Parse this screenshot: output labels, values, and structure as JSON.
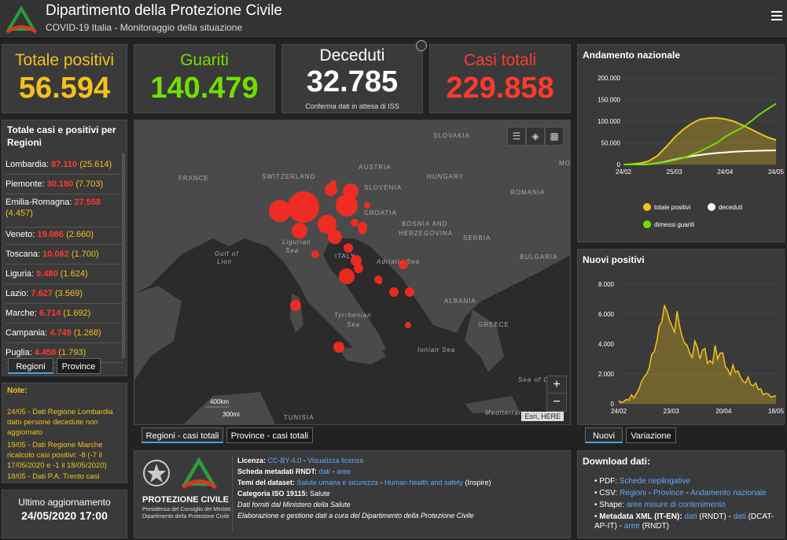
{
  "header": {
    "title": "Dipartimento della Protezione Civile",
    "subtitle": "COVID-19 Italia - Monitoraggio della situazione"
  },
  "stats": {
    "positivi": {
      "label": "Totale positivi",
      "value": "56.594",
      "color": "#f3c21b"
    },
    "guariti": {
      "label": "Guariti",
      "value": "140.479",
      "color": "#70e000"
    },
    "deceduti": {
      "label": "Deceduti",
      "value": "32.785",
      "note": "Conferma dati in attesa di ISS",
      "color": "#ffffff"
    },
    "totali": {
      "label": "Casi totali",
      "value": "229.858",
      "color": "#ff3b2f"
    }
  },
  "regions_panel": {
    "title": "Totale casi e positivi per Regioni",
    "items": [
      {
        "name": "Lombardia",
        "cases": "87.110",
        "positives": "(25.614)"
      },
      {
        "name": "Piemonte",
        "cases": "30.180",
        "positives": "(7.703)"
      },
      {
        "name": "Emilia-Romagna",
        "cases": "27.558",
        "positives": "(4.457)"
      },
      {
        "name": "Veneto",
        "cases": "19.086",
        "positives": "(2.660)"
      },
      {
        "name": "Toscana",
        "cases": "10.062",
        "positives": "(1.700)"
      },
      {
        "name": "Liguria",
        "cases": "9.480",
        "positives": "(1.624)"
      },
      {
        "name": "Lazio",
        "cases": "7.627",
        "positives": "(3.569)"
      },
      {
        "name": "Marche",
        "cases": "6.714",
        "positives": "(1.692)"
      },
      {
        "name": "Campania",
        "cases": "4.749",
        "positives": "(1.268)"
      },
      {
        "name": "Puglia",
        "cases": "4.458",
        "positives": "(1.793)"
      }
    ],
    "tabs": [
      "Regioni",
      "Province"
    ]
  },
  "notes": {
    "title": "Note:",
    "lines": [
      "24/05 - Dati Regione Lombardia dato persone decedute non aggiornato",
      "19/05 - Dati Regione Marche ricalcolo casi positivi: -8 (-7 il 17/05/2020 e -1 il 18/05/2020)",
      "18/05 - Dati P.A. Trento casi"
    ]
  },
  "update": {
    "label": "Ultimo aggiornamento",
    "value": "24/05/2020 17:00"
  },
  "map": {
    "labels": [
      "FRANCE",
      "SWITZERLAND",
      "AUSTRIA",
      "SLOVAKIA",
      "HUNGARY",
      "SLOVENIA",
      "CROATIA",
      "ROMANIA",
      "BOSNIA AND",
      "HERZEGOVINA",
      "SERBIA",
      "ITALY",
      "BULGARIA",
      "ALBANIA",
      "GREECE",
      "TUNISIA",
      "Gulf of",
      "Lion",
      "Ligurian",
      "Sea",
      "Adriatic Sea",
      "Tyrrhenian",
      "Sea",
      "Ionian Sea",
      "Sea of Crete",
      "Mediterranea",
      "MO"
    ],
    "scale_km": "400km",
    "scale_mi": "300mi",
    "attribution": "Esri, HERE",
    "zoom_in": "+",
    "zoom_out": "−",
    "tabs": [
      "Regioni - casi totali",
      "Province - casi totali"
    ]
  },
  "logo_panel": {
    "name": "PROTEZIONE CIVILE",
    "line1": "Presidenza del Consiglio dei Ministri",
    "line2": "Dipartimento della Protezione Civile"
  },
  "metadata": {
    "licenza_label": "Licenza:",
    "licenza_value": "CC-BY-4.0",
    "licenza_link": "Visualizza licenza",
    "rndt_label": "Scheda metadati RNDT:",
    "rndt_links": [
      "dati",
      "aree"
    ],
    "temi_label": "Temi del dataset:",
    "temi_links": [
      "Salute umana e sicurezza",
      "Human health and safety"
    ],
    "temi_suffix": "(Inspire)",
    "iso_label": "Categoria ISO 19115:",
    "iso_value": "Salute",
    "fonte": "Dati forniti dal Ministero della Salute",
    "gestione": "Elaborazione e gestione dati a cura del Dipartimento della Protezione Civile"
  },
  "andamento": {
    "title": "Andamento nazionale",
    "legend": [
      "totale positivi",
      "deceduti",
      "dimessi guariti"
    ]
  },
  "nuovi": {
    "title": "Nuovi positivi",
    "tabs": [
      "Nuovi",
      "Variazione"
    ]
  },
  "download": {
    "title": "Download dati:",
    "pdf_label": "PDF:",
    "pdf_link": "Schede riepilogative",
    "csv_label": "CSV:",
    "csv_links": [
      "Regioni",
      "Province",
      "Andamento nazionale"
    ],
    "shape_label": "Shape:",
    "shape_link": "aree misure di contenimento",
    "xml_label": "Metadata XML (IT-EN):",
    "xml_links": [
      "dati",
      "dati"
    ],
    "xml_rndt": "(RNDT)",
    "xml_dcat": "(DCAT-AP-IT)",
    "xml_aree": "aree",
    "xml_rndt2": "(RNDT)"
  },
  "chart_data": [
    {
      "type": "area",
      "title": "Andamento nazionale",
      "x_ticks": [
        "24/02",
        "25/03",
        "24/04",
        "24/05"
      ],
      "y_ticks": [
        "0",
        "50.000",
        "100.000",
        "150.000",
        "200.000"
      ],
      "ylim": [
        0,
        200000
      ],
      "x": [
        0,
        5,
        10,
        15,
        20,
        25,
        30,
        35,
        40,
        45,
        50,
        55,
        60,
        65,
        70,
        75,
        80,
        85,
        90
      ],
      "series": [
        {
          "name": "totale positivi",
          "color": "#f3c21b",
          "values": [
            0,
            1000,
            3000,
            8000,
            20000,
            40000,
            62000,
            80000,
            94000,
            104000,
            107000,
            108000,
            105000,
            100000,
            91000,
            82000,
            72000,
            63000,
            56594
          ]
        },
        {
          "name": "deceduti",
          "color": "#ffffff",
          "values": [
            0,
            20,
            150,
            800,
            3000,
            7000,
            11500,
            15500,
            19000,
            22000,
            24500,
            26500,
            28000,
            29500,
            30500,
            31300,
            31900,
            32400,
            32785
          ]
        },
        {
          "name": "dimessi guariti",
          "color": "#70e000",
          "values": [
            0,
            20,
            300,
            1000,
            2800,
            6000,
            10000,
            15000,
            22000,
            30000,
            40000,
            50000,
            64000,
            75000,
            85000,
            99000,
            115000,
            128000,
            140479
          ]
        }
      ],
      "legend_position": "bottom"
    },
    {
      "type": "area",
      "title": "Nuovi positivi",
      "x_ticks": [
        "24/02",
        "23/03",
        "20/04",
        "18/05"
      ],
      "y_ticks": [
        "0",
        "2.000",
        "4.000",
        "6.000",
        "8.000"
      ],
      "ylim": [
        0,
        8000
      ],
      "series": [
        {
          "name": "Nuovi",
          "color": "#f3c21b",
          "values": [
            200,
            100,
            150,
            300,
            250,
            600,
            400,
            700,
            1000,
            1500,
            1800,
            2000,
            2400,
            3300,
            3500,
            4200,
            5200,
            5500,
            6550,
            6200,
            5600,
            5200,
            4800,
            6200,
            5200,
            4500,
            4050,
            3900,
            3400,
            3100,
            4200,
            3800,
            3000,
            3600,
            3700,
            2700,
            2900,
            2700,
            3900,
            3000,
            3400,
            3400,
            2500,
            2300,
            1900,
            2600,
            2100,
            2200,
            1800,
            1500,
            1400,
            1800,
            1300,
            1200,
            1400,
            950,
            1000,
            600,
            700,
            650,
            450,
            500,
            530
          ]
        }
      ]
    }
  ]
}
